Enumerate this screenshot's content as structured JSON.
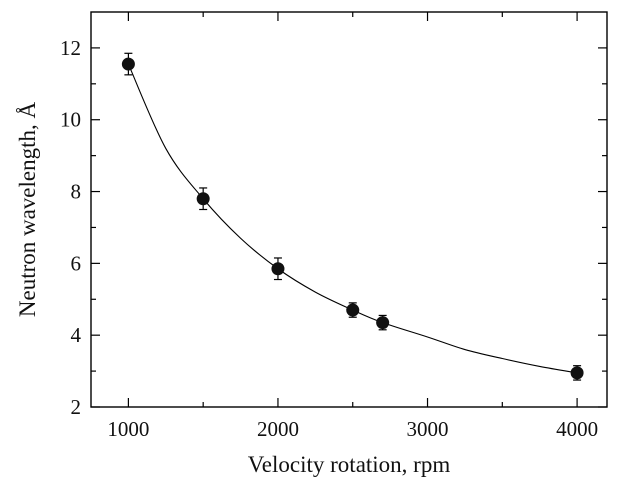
{
  "chart_data": {
    "type": "scatter",
    "xlabel": "Velocity rotation, rpm",
    "ylabel": "Neutron wavelength, Å",
    "xlim": [
      750,
      4200
    ],
    "ylim": [
      2,
      13
    ],
    "x_ticks": [
      1000,
      2000,
      3000,
      4000
    ],
    "x_minor_ticks": [
      1500,
      2500,
      3500
    ],
    "y_ticks": [
      2,
      4,
      6,
      8,
      10,
      12
    ],
    "y_minor_ticks": [
      3,
      5,
      7,
      9,
      11
    ],
    "grid": false,
    "series": [
      {
        "style": "markers-with-error-bars",
        "color": "#111111",
        "points": [
          {
            "x": 1000,
            "y": 11.55,
            "err": 0.3
          },
          {
            "x": 1500,
            "y": 7.8,
            "err": 0.3
          },
          {
            "x": 2000,
            "y": 5.85,
            "err": 0.3
          },
          {
            "x": 2500,
            "y": 4.7,
            "err": 0.2
          },
          {
            "x": 2700,
            "y": 4.35,
            "err": 0.2
          },
          {
            "x": 4000,
            "y": 2.95,
            "err": 0.2
          }
        ]
      }
    ],
    "fit_curve": {
      "style": "smooth-line",
      "color": "#000000",
      "x_range": [
        1000,
        4000
      ],
      "points": [
        {
          "x": 1000,
          "y": 11.55
        },
        {
          "x": 1250,
          "y": 9.2
        },
        {
          "x": 1500,
          "y": 7.8
        },
        {
          "x": 1750,
          "y": 6.7
        },
        {
          "x": 2000,
          "y": 5.85
        },
        {
          "x": 2250,
          "y": 5.2
        },
        {
          "x": 2500,
          "y": 4.7
        },
        {
          "x": 2700,
          "y": 4.35
        },
        {
          "x": 3000,
          "y": 3.95
        },
        {
          "x": 3250,
          "y": 3.6
        },
        {
          "x": 3500,
          "y": 3.35
        },
        {
          "x": 3750,
          "y": 3.13
        },
        {
          "x": 4000,
          "y": 2.95
        }
      ]
    }
  }
}
